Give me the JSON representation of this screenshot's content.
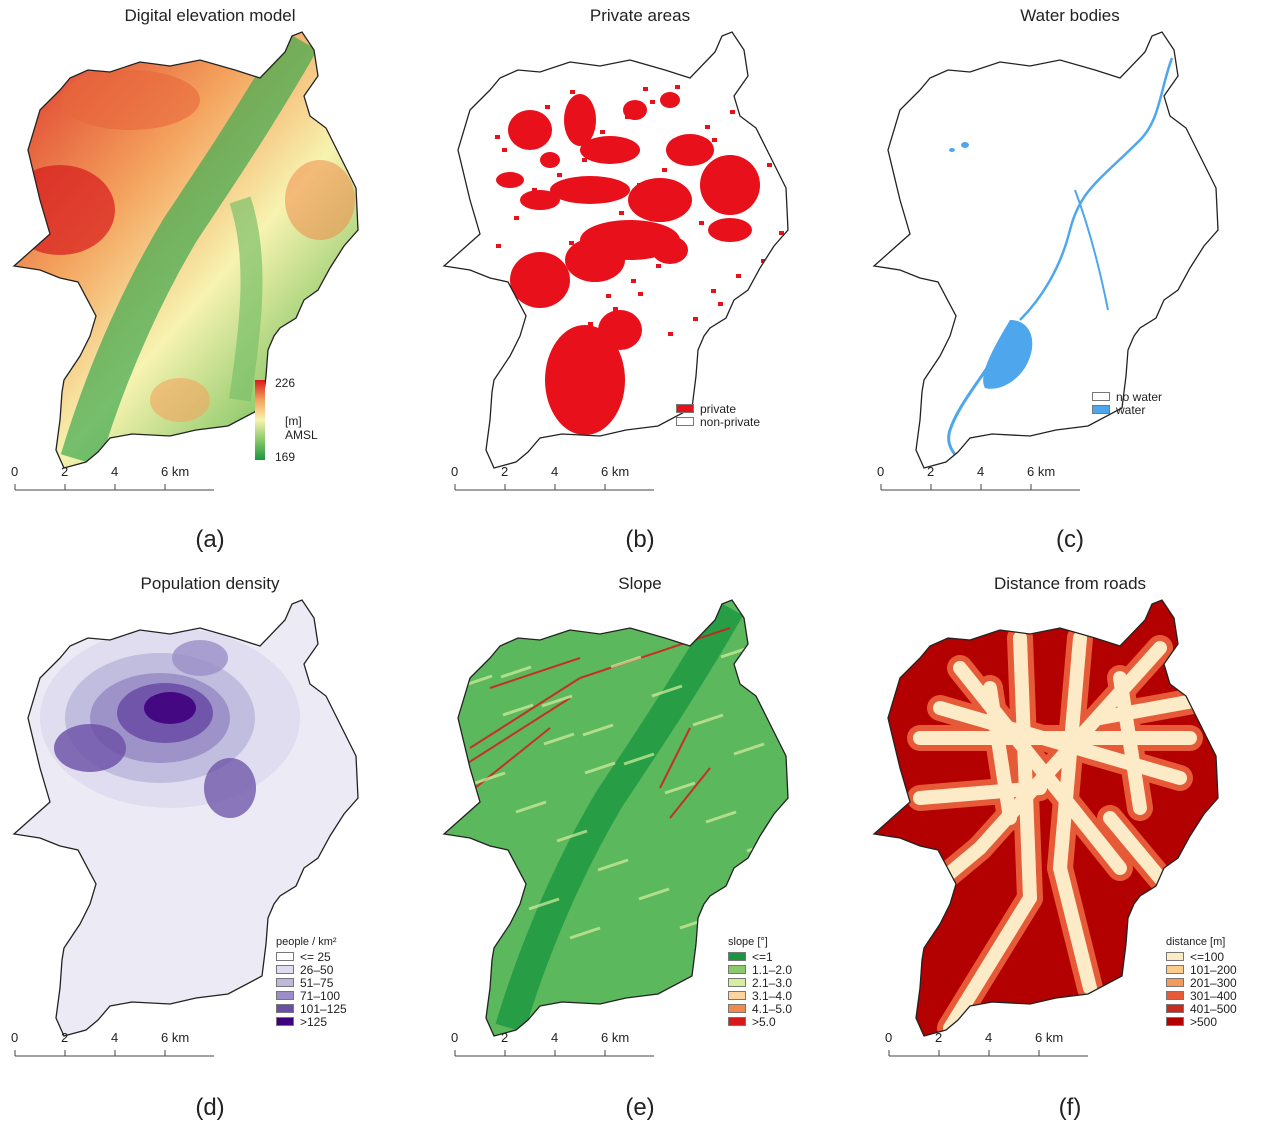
{
  "panels": {
    "a": {
      "title": "Digital elevation model",
      "label": "(a)",
      "legend": {
        "max": "226",
        "unit": "[m] AMSL",
        "min": "169"
      }
    },
    "b": {
      "title": "Private areas",
      "label": "(b)",
      "legend": {
        "items": [
          {
            "label": "private",
            "color": "#e8101a"
          },
          {
            "label": "non-private",
            "color": "#ffffff"
          }
        ]
      }
    },
    "c": {
      "title": "Water bodies",
      "label": "(c)",
      "legend": {
        "items": [
          {
            "label": "no water",
            "color": "#ffffff"
          },
          {
            "label": "water",
            "color": "#4ea7ec"
          }
        ]
      }
    },
    "d": {
      "title": "Population density",
      "label": "(d)",
      "legend": {
        "title": "people / km²",
        "items": [
          {
            "label": "<= 25",
            "color": "#ffffff"
          },
          {
            "label": "26–50",
            "color": "#dedcee"
          },
          {
            "label": "51–75",
            "color": "#bcb9dc"
          },
          {
            "label": "71–100",
            "color": "#9a8ec7"
          },
          {
            "label": "101–125",
            "color": "#6a4fa6"
          },
          {
            "label": ">125",
            "color": "#3f007d"
          }
        ]
      }
    },
    "e": {
      "title": "Slope",
      "label": "(e)",
      "legend": {
        "title": "slope [°]",
        "items": [
          {
            "label": "<=1",
            "color": "#1a9641"
          },
          {
            "label": "1.1–2.0",
            "color": "#8bc86a"
          },
          {
            "label": "2.1–3.0",
            "color": "#d7ee9e"
          },
          {
            "label": "3.1–4.0",
            "color": "#fdd49e"
          },
          {
            "label": "4.1–5.0",
            "color": "#f08a4b"
          },
          {
            "label": ">5.0",
            "color": "#d7191c"
          }
        ]
      }
    },
    "f": {
      "title": "Distance from roads",
      "label": "(f)",
      "legend": {
        "title": "distance [m]",
        "items": [
          {
            "label": "<=100",
            "color": "#fdebc8"
          },
          {
            "label": "101–200",
            "color": "#fdcc8a"
          },
          {
            "label": "201–300",
            "color": "#f49a5a"
          },
          {
            "label": "301–400",
            "color": "#e65a38"
          },
          {
            "label": "401–500",
            "color": "#cc2a1e"
          },
          {
            "label": ">500",
            "color": "#b30000"
          }
        ]
      }
    }
  },
  "scalebar": {
    "ticks": [
      "0",
      "2",
      "4",
      "6 km"
    ]
  },
  "colors": {
    "outline": "#222222",
    "dem_high": "#d7191c",
    "dem_mid": "#f7f3b0",
    "dem_low": "#1a9641",
    "private": "#e8101a",
    "water": "#4ea7ec",
    "density_low": "#ecebf5",
    "density_high": "#3f007d",
    "slope_flat": "#5cb85c",
    "slope_steep": "#d7191c",
    "road_near": "#fdebc8",
    "road_far": "#b30000"
  }
}
